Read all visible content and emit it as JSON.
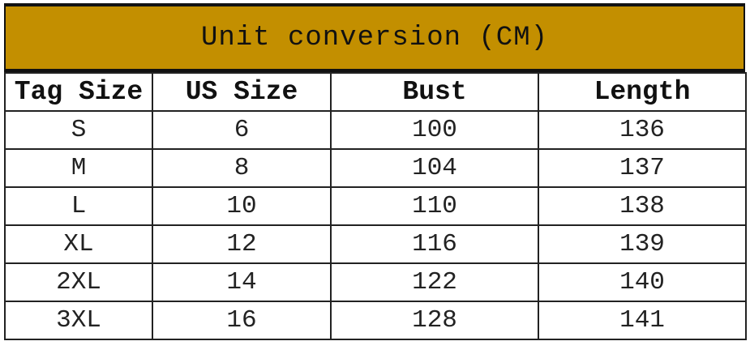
{
  "title": "Unit conversion (CM)",
  "colors": {
    "header_band": "#C38F00"
  },
  "columns": [
    "Tag Size",
    "US Size",
    "Bust",
    "Length"
  ],
  "rows": [
    [
      "S",
      "6",
      "100",
      "136"
    ],
    [
      "M",
      "8",
      "104",
      "137"
    ],
    [
      "L",
      "10",
      "110",
      "138"
    ],
    [
      "XL",
      "12",
      "116",
      "139"
    ],
    [
      "2XL",
      "14",
      "122",
      "140"
    ],
    [
      "3XL",
      "16",
      "128",
      "141"
    ]
  ]
}
